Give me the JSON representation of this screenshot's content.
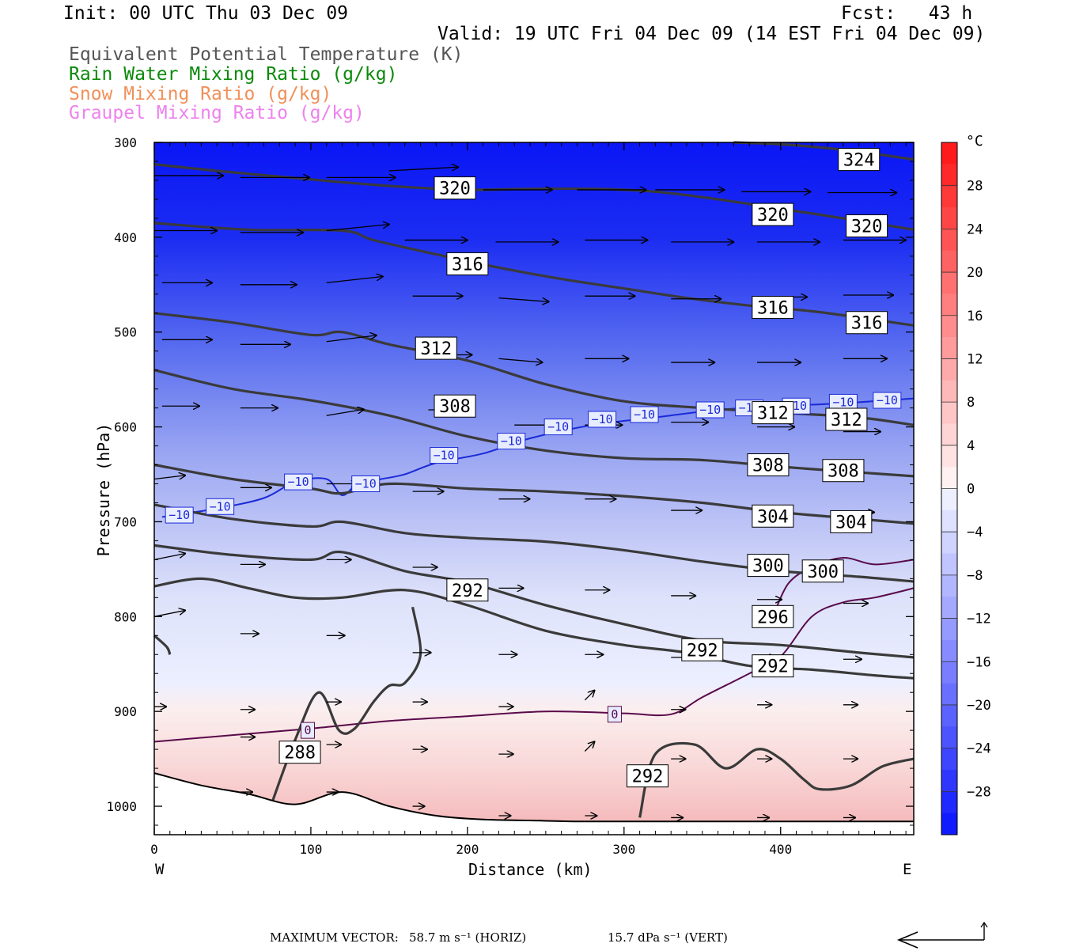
{
  "header": {
    "init": "Init: 00 UTC Thu 03 Dec 09",
    "fcst": "Fcst:   43 h",
    "valid": "Valid: 19 UTC Fri 04 Dec 09 (14 EST Fri 04 Dec 09)",
    "fields": [
      {
        "label": "Equivalent Potential Temperature (K)",
        "color": "#555555"
      },
      {
        "label": "Rain Water Mixing Ratio (g/kg)",
        "color": "#0a8a0a"
      },
      {
        "label": "Snow Mixing Ratio (g/kg)",
        "color": "#f0905a"
      },
      {
        "label": "Graupel Mixing Ratio (g/kg)",
        "color": "#ee82ee"
      }
    ]
  },
  "chart_data": {
    "type": "contour",
    "xlabel": "Distance (km)",
    "ylabel": "Pressure (hPa)",
    "xlim": [
      0,
      485
    ],
    "ylim": [
      1030,
      300
    ],
    "x_ticks": [
      0,
      100,
      200,
      300,
      400
    ],
    "y_ticks": [
      300,
      400,
      500,
      600,
      700,
      800,
      900,
      1000
    ],
    "x_end_labels": {
      "left": "W",
      "right": "E"
    },
    "colorbar": {
      "unit": "°C",
      "ticks": [
        28,
        24,
        20,
        16,
        12,
        8,
        4,
        0,
        -4,
        -8,
        -12,
        -16,
        -20,
        -24,
        -28
      ],
      "range": [
        -32,
        32
      ],
      "cold_color": "#0000ff",
      "warm_color": "#ff0000"
    },
    "theta_e_contours": [
      {
        "level": 324,
        "x": [
          370,
          400,
          430,
          460,
          485
        ],
        "p": [
          300,
          302,
          306,
          312,
          318
        ]
      },
      {
        "level": 320,
        "x": [
          0,
          40,
          80,
          120,
          160,
          200,
          240,
          280,
          320,
          360,
          400,
          440,
          485
        ],
        "p": [
          323,
          330,
          336,
          342,
          347,
          350,
          349,
          349,
          352,
          360,
          370,
          380,
          392
        ]
      },
      {
        "level": 316,
        "x": [
          0,
          60,
          120,
          140,
          180,
          220,
          260,
          300,
          340,
          380,
          420,
          460,
          485
        ],
        "p": [
          385,
          392,
          393,
          403,
          418,
          432,
          444,
          454,
          464,
          472,
          478,
          487,
          493
        ]
      },
      {
        "level": 312,
        "x": [
          0,
          50,
          100,
          120,
          150,
          200,
          250,
          300,
          350,
          400,
          450,
          485
        ],
        "p": [
          480,
          490,
          503,
          500,
          513,
          530,
          555,
          573,
          580,
          585,
          590,
          598
        ]
      },
      {
        "level": 308,
        "x": [
          0,
          50,
          100,
          150,
          200,
          250,
          300,
          350,
          400,
          450,
          485
        ],
        "p": [
          540,
          560,
          572,
          588,
          610,
          625,
          633,
          635,
          642,
          648,
          652
        ]
      },
      {
        "level": 304,
        "x": [
          0,
          50,
          100,
          120,
          150,
          200,
          250,
          300,
          350,
          400,
          450,
          485
        ],
        "p": [
          640,
          655,
          665,
          670,
          660,
          665,
          668,
          673,
          680,
          690,
          697,
          702
        ]
      },
      {
        "level": 300,
        "x": [
          0,
          50,
          100,
          120,
          160,
          200,
          250,
          300,
          350,
          400,
          450,
          485
        ],
        "p": [
          682,
          697,
          705,
          700,
          712,
          717,
          721,
          730,
          742,
          752,
          758,
          763
        ]
      },
      {
        "level": 296,
        "x": [
          0,
          50,
          100,
          120,
          160,
          200,
          250,
          300,
          350,
          400,
          450,
          485
        ],
        "p": [
          725,
          735,
          740,
          732,
          752,
          764,
          788,
          808,
          825,
          830,
          838,
          843
        ]
      },
      {
        "level": 292,
        "x": [
          0,
          30,
          60,
          90,
          120,
          160,
          200,
          250,
          300,
          340,
          380,
          420,
          460,
          485
        ],
        "p": [
          768,
          760,
          770,
          780,
          780,
          772,
          788,
          815,
          830,
          838,
          852,
          856,
          862,
          865
        ]
      },
      {
        "level": 292,
        "x": [
          310,
          320,
          345,
          365,
          385,
          400,
          415,
          425,
          445,
          465,
          485
        ],
        "p": [
          1012,
          945,
          935,
          960,
          940,
          950,
          972,
          982,
          978,
          958,
          950
        ]
      },
      {
        "level": 288,
        "x": [
          75,
          90,
          105,
          118,
          128,
          140,
          150,
          160,
          170,
          165
        ],
        "p": [
          997,
          930,
          880,
          920,
          918,
          890,
          873,
          870,
          840,
          790
        ]
      },
      {
        "level": 288,
        "x": [
          0,
          8,
          10
        ],
        "p": [
          820,
          832,
          840
        ]
      }
    ],
    "theta_e_labels": [
      {
        "text": "324",
        "x": 450,
        "p": 318
      },
      {
        "text": "320",
        "x": 192,
        "p": 348
      },
      {
        "text": "320",
        "x": 395,
        "p": 376
      },
      {
        "text": "320",
        "x": 455,
        "p": 388
      },
      {
        "text": "316",
        "x": 200,
        "p": 428
      },
      {
        "text": "316",
        "x": 395,
        "p": 474
      },
      {
        "text": "316",
        "x": 455,
        "p": 490
      },
      {
        "text": "312",
        "x": 180,
        "p": 517
      },
      {
        "text": "312",
        "x": 395,
        "p": 585
      },
      {
        "text": "312",
        "x": 442,
        "p": 592
      },
      {
        "text": "308",
        "x": 192,
        "p": 578
      },
      {
        "text": "308",
        "x": 392,
        "p": 640
      },
      {
        "text": "308",
        "x": 440,
        "p": 646
      },
      {
        "text": "304",
        "x": 395,
        "p": 694
      },
      {
        "text": "304",
        "x": 445,
        "p": 700
      },
      {
        "text": "300",
        "x": 392,
        "p": 746
      },
      {
        "text": "300",
        "x": 427,
        "p": 752
      },
      {
        "text": "296",
        "x": 395,
        "p": 800
      },
      {
        "text": "292",
        "x": 200,
        "p": 772
      },
      {
        "text": "292",
        "x": 350,
        "p": 835
      },
      {
        "text": "292",
        "x": 395,
        "p": 852
      },
      {
        "text": "292",
        "x": 315,
        "p": 968
      },
      {
        "text": "288",
        "x": 93,
        "p": 943
      }
    ],
    "temp_contours": [
      {
        "level": -10,
        "x": [
          5,
          40,
          70,
          90,
          110,
          120,
          130,
          145,
          160,
          180,
          210,
          240,
          280,
          320,
          360,
          400,
          440,
          485
        ],
        "p": [
          695,
          686,
          675,
          658,
          655,
          672,
          660,
          655,
          650,
          638,
          628,
          612,
          598,
          590,
          582,
          578,
          575,
          570
        ]
      },
      {
        "level": 0,
        "x": [
          0,
          50,
          100,
          150,
          200,
          250,
          300,
          330,
          350,
          380,
          400,
          420,
          440,
          460,
          485
        ],
        "p": [
          932,
          925,
          918,
          910,
          905,
          900,
          902,
          903,
          885,
          860,
          842,
          800,
          785,
          780,
          770
        ]
      },
      {
        "level": 0,
        "x": [
          395,
          405,
          420,
          440,
          460,
          485
        ],
        "p": [
          800,
          765,
          748,
          738,
          745,
          740
        ]
      }
    ],
    "temp_labels": [
      {
        "text": "-10",
        "x": 16,
        "p": 693
      },
      {
        "text": "-10",
        "x": 42,
        "p": 684
      },
      {
        "text": "-10",
        "x": 92,
        "p": 658
      },
      {
        "text": "-10",
        "x": 135,
        "p": 660
      },
      {
        "text": "-10",
        "x": 185,
        "p": 630
      },
      {
        "text": "-10",
        "x": 228,
        "p": 615
      },
      {
        "text": "-10",
        "x": 258,
        "p": 600
      },
      {
        "text": "-10",
        "x": 286,
        "p": 592
      },
      {
        "text": "-10",
        "x": 313,
        "p": 587
      },
      {
        "text": "-10",
        "x": 355,
        "p": 582
      },
      {
        "text": "-10",
        "x": 380,
        "p": 580
      },
      {
        "text": "-10",
        "x": 410,
        "p": 578
      },
      {
        "text": "-10",
        "x": 440,
        "p": 574
      },
      {
        "text": "-10",
        "x": 468,
        "p": 572
      },
      {
        "text": "0",
        "x": 98,
        "p": 920
      },
      {
        "text": "0",
        "x": 294,
        "p": 903
      }
    ],
    "wind_vectors": [
      {
        "x": 0,
        "p": 335,
        "u": 55,
        "v": 0
      },
      {
        "x": 55,
        "p": 337,
        "u": 55,
        "v": 0
      },
      {
        "x": 110,
        "p": 337,
        "u": 55,
        "v": 0
      },
      {
        "x": 165,
        "p": 335,
        "u": 0,
        "v": 0
      },
      {
        "x": 150,
        "p": 330,
        "u": 55,
        "v": 3
      },
      {
        "x": 210,
        "p": 350,
        "u": 55,
        "v": 0
      },
      {
        "x": 270,
        "p": 350,
        "u": 55,
        "v": 0
      },
      {
        "x": 320,
        "p": 350,
        "u": 55,
        "v": 0
      },
      {
        "x": 375,
        "p": 352,
        "u": 55,
        "v": 0
      },
      {
        "x": 430,
        "p": 353,
        "u": 55,
        "v": 0
      },
      {
        "x": 483,
        "p": 340,
        "u": 0,
        "v": 0
      },
      {
        "x": 0,
        "p": 393,
        "u": 50,
        "v": 0
      },
      {
        "x": 55,
        "p": 395,
        "u": 50,
        "v": 0
      },
      {
        "x": 110,
        "p": 393,
        "u": 50,
        "v": 5
      },
      {
        "x": 160,
        "p": 403,
        "u": 50,
        "v": 0
      },
      {
        "x": 218,
        "p": 405,
        "u": 50,
        "v": 0
      },
      {
        "x": 275,
        "p": 403,
        "u": 50,
        "v": 0
      },
      {
        "x": 330,
        "p": 405,
        "u": 50,
        "v": 0
      },
      {
        "x": 385,
        "p": 405,
        "u": 50,
        "v": 0
      },
      {
        "x": 440,
        "p": 403,
        "u": 50,
        "v": 0
      },
      {
        "x": 5,
        "p": 448,
        "u": 40,
        "v": 0
      },
      {
        "x": 55,
        "p": 450,
        "u": 45,
        "v": 0
      },
      {
        "x": 110,
        "p": 448,
        "u": 45,
        "v": 5
      },
      {
        "x": 165,
        "p": 462,
        "u": 40,
        "v": 0
      },
      {
        "x": 220,
        "p": 464,
        "u": 40,
        "v": -3
      },
      {
        "x": 275,
        "p": 462,
        "u": 40,
        "v": 0
      },
      {
        "x": 330,
        "p": 465,
        "u": 40,
        "v": 0
      },
      {
        "x": 385,
        "p": 463,
        "u": 40,
        "v": 0
      },
      {
        "x": 440,
        "p": 461,
        "u": 40,
        "v": 0
      },
      {
        "x": 5,
        "p": 508,
        "u": 40,
        "v": 0
      },
      {
        "x": 55,
        "p": 513,
        "u": 40,
        "v": 0
      },
      {
        "x": 110,
        "p": 510,
        "u": 40,
        "v": 5
      },
      {
        "x": 175,
        "p": 524,
        "u": 35,
        "v": 0
      },
      {
        "x": 220,
        "p": 528,
        "u": 35,
        "v": -3
      },
      {
        "x": 275,
        "p": 528,
        "u": 35,
        "v": 0
      },
      {
        "x": 330,
        "p": 532,
        "u": 35,
        "v": 0
      },
      {
        "x": 385,
        "p": 532,
        "u": 35,
        "v": 0
      },
      {
        "x": 440,
        "p": 528,
        "u": 35,
        "v": 0
      },
      {
        "x": 5,
        "p": 578,
        "u": 30,
        "v": 0
      },
      {
        "x": 55,
        "p": 580,
        "u": 30,
        "v": 0
      },
      {
        "x": 110,
        "p": 588,
        "u": 30,
        "v": 5
      },
      {
        "x": 175,
        "p": 582,
        "u": 30,
        "v": 0
      },
      {
        "x": 230,
        "p": 598,
        "u": 30,
        "v": 0
      },
      {
        "x": 275,
        "p": 598,
        "u": 30,
        "v": 0
      },
      {
        "x": 330,
        "p": 595,
        "u": 30,
        "v": 0
      },
      {
        "x": 385,
        "p": 600,
        "u": 30,
        "v": 0
      },
      {
        "x": 440,
        "p": 605,
        "u": 30,
        "v": 0
      },
      {
        "x": 0,
        "p": 655,
        "u": 25,
        "v": 3
      },
      {
        "x": 55,
        "p": 664,
        "u": 25,
        "v": 0
      },
      {
        "x": 110,
        "p": 660,
        "u": 25,
        "v": 0
      },
      {
        "x": 165,
        "p": 668,
        "u": 25,
        "v": 0
      },
      {
        "x": 220,
        "p": 676,
        "u": 25,
        "v": 0
      },
      {
        "x": 275,
        "p": 676,
        "u": 25,
        "v": 0
      },
      {
        "x": 330,
        "p": 688,
        "u": 25,
        "v": 0
      },
      {
        "x": 385,
        "p": 690,
        "u": 25,
        "v": 0
      },
      {
        "x": 440,
        "p": 690,
        "u": 25,
        "v": 0
      },
      {
        "x": 0,
        "p": 740,
        "u": 25,
        "v": 5
      },
      {
        "x": 55,
        "p": 745,
        "u": 20,
        "v": 0
      },
      {
        "x": 110,
        "p": 740,
        "u": 20,
        "v": 0
      },
      {
        "x": 165,
        "p": 748,
        "u": 20,
        "v": 0
      },
      {
        "x": 220,
        "p": 770,
        "u": 20,
        "v": 0
      },
      {
        "x": 275,
        "p": 772,
        "u": 20,
        "v": 0
      },
      {
        "x": 330,
        "p": 778,
        "u": 20,
        "v": 0
      },
      {
        "x": 385,
        "p": 782,
        "u": 20,
        "v": 0
      },
      {
        "x": 440,
        "p": 786,
        "u": 20,
        "v": 0
      },
      {
        "x": 0,
        "p": 800,
        "u": 25,
        "v": 5
      },
      {
        "x": 55,
        "p": 818,
        "u": 15,
        "v": 0
      },
      {
        "x": 110,
        "p": 820,
        "u": 15,
        "v": 0
      },
      {
        "x": 165,
        "p": 838,
        "u": 15,
        "v": 0
      },
      {
        "x": 220,
        "p": 840,
        "u": 15,
        "v": 0
      },
      {
        "x": 275,
        "p": 840,
        "u": 15,
        "v": 0
      },
      {
        "x": 330,
        "p": 843,
        "u": 15,
        "v": 0
      },
      {
        "x": 385,
        "p": 843,
        "u": 15,
        "v": 0
      },
      {
        "x": 440,
        "p": 845,
        "u": 15,
        "v": 0
      },
      {
        "x": 0,
        "p": 895,
        "u": 10,
        "v": 0
      },
      {
        "x": 55,
        "p": 898,
        "u": 12,
        "v": 0
      },
      {
        "x": 110,
        "p": 890,
        "u": 12,
        "v": 0
      },
      {
        "x": 165,
        "p": 890,
        "u": 12,
        "v": 0
      },
      {
        "x": 220,
        "p": 895,
        "u": 12,
        "v": 0
      },
      {
        "x": 275,
        "p": 888,
        "u": 8,
        "v": 8
      },
      {
        "x": 330,
        "p": 898,
        "u": 12,
        "v": 0
      },
      {
        "x": 385,
        "p": 893,
        "u": 12,
        "v": 0
      },
      {
        "x": 440,
        "p": 893,
        "u": 12,
        "v": 0
      },
      {
        "x": 55,
        "p": 927,
        "u": 12,
        "v": 0
      },
      {
        "x": 110,
        "p": 935,
        "u": 12,
        "v": 0
      },
      {
        "x": 165,
        "p": 940,
        "u": 12,
        "v": 0
      },
      {
        "x": 220,
        "p": 945,
        "u": 12,
        "v": 0
      },
      {
        "x": 275,
        "p": 942,
        "u": 8,
        "v": 8
      },
      {
        "x": 330,
        "p": 950,
        "u": 12,
        "v": 0
      },
      {
        "x": 385,
        "p": 950,
        "u": 12,
        "v": 0
      },
      {
        "x": 440,
        "p": 950,
        "u": 12,
        "v": 0
      },
      {
        "x": 55,
        "p": 985,
        "u": 10,
        "v": 0
      },
      {
        "x": 110,
        "p": 985,
        "u": 10,
        "v": 0
      },
      {
        "x": 165,
        "p": 1000,
        "u": 10,
        "v": 0
      },
      {
        "x": 220,
        "p": 1010,
        "u": 10,
        "v": 0
      },
      {
        "x": 275,
        "p": 1010,
        "u": 10,
        "v": 0
      },
      {
        "x": 330,
        "p": 1012,
        "u": 10,
        "v": 0
      },
      {
        "x": 385,
        "p": 1012,
        "u": 10,
        "v": 0
      },
      {
        "x": 440,
        "p": 1012,
        "u": 10,
        "v": 0
      }
    ],
    "terrain": {
      "x": [
        0,
        30,
        60,
        90,
        120,
        150,
        180,
        210,
        240,
        270,
        300,
        330,
        360,
        400,
        440,
        485
      ],
      "p": [
        965,
        978,
        987,
        998,
        985,
        1000,
        1010,
        1014,
        1015,
        1016,
        1016,
        1016,
        1016,
        1016,
        1016,
        1016
      ]
    }
  },
  "footer": {
    "max_vector_label": "MAXIMUM VECTOR:",
    "max_vector_horiz": "58.7 m s⁻¹ (HORIZ)",
    "max_vector_vert": "15.7 dPa s⁻¹ (VERT)"
  }
}
